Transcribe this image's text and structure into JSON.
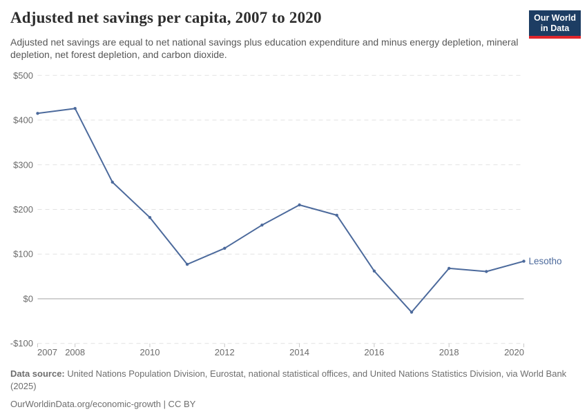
{
  "header": {
    "title": "Adjusted net savings per capita, 2007 to 2020",
    "subtitle": "Adjusted net savings are equal to net national savings plus education expenditure and minus energy depletion, mineral depletion, net forest depletion, and carbon dioxide."
  },
  "logo": {
    "line1": "Our World",
    "line2": "in Data",
    "bg_color": "#1d3d63",
    "stripe_color": "#e0262c"
  },
  "chart_data": {
    "type": "line",
    "title": "Adjusted net savings per capita, 2007 to 2020",
    "x": [
      2007,
      2008,
      2009,
      2010,
      2011,
      2012,
      2013,
      2014,
      2015,
      2016,
      2017,
      2018,
      2019,
      2020
    ],
    "series": [
      {
        "name": "Lesotho",
        "color": "#4c6a9c",
        "values": [
          415,
          426,
          261,
          182,
          77,
          113,
          165,
          210,
          187,
          62,
          -30,
          68,
          61,
          84
        ]
      }
    ],
    "xlabel": "",
    "ylabel": "",
    "ylim": [
      -100,
      500
    ],
    "yticks": [
      {
        "value": 500,
        "label": "$500"
      },
      {
        "value": 400,
        "label": "$400"
      },
      {
        "value": 300,
        "label": "$300"
      },
      {
        "value": 200,
        "label": "$200"
      },
      {
        "value": 100,
        "label": "$100"
      },
      {
        "value": 0,
        "label": "$0"
      },
      {
        "value": -100,
        "label": "-$100"
      }
    ],
    "xticks": [
      {
        "value": 2007,
        "label": "2007"
      },
      {
        "value": 2008,
        "label": "2008"
      },
      {
        "value": 2010,
        "label": "2010"
      },
      {
        "value": 2012,
        "label": "2012"
      },
      {
        "value": 2014,
        "label": "2014"
      },
      {
        "value": 2016,
        "label": "2016"
      },
      {
        "value": 2018,
        "label": "2018"
      },
      {
        "value": 2020,
        "label": "2020"
      }
    ],
    "grid": "horizontal-dashed",
    "zero_line": true,
    "entity_label": "Lesotho",
    "legend_position": "end-of-line",
    "colors": {
      "grid": "#e2e2e2",
      "zero_line": "#a3a3a3",
      "axis_tick": "#c8c8c8",
      "axis_label": "#6b6b6b",
      "line": "#4c6a9c"
    }
  },
  "footer": {
    "data_source_label": "Data source:",
    "data_source_text": " United Nations Population Division, Eurostat, national statistical offices, and United Nations Statistics Division, via World Bank (2025)",
    "citation": "OurWorldinData.org/economic-growth | CC BY"
  }
}
